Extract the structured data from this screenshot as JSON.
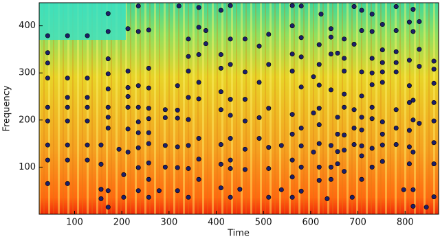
{
  "chart_data": {
    "type": "scatter",
    "xlabel": "Time",
    "ylabel": "Frequency",
    "xlim": [
      25,
      871
    ],
    "ylim": [
      0,
      449
    ],
    "xticks": [
      100,
      200,
      300,
      400,
      500,
      600,
      700,
      800
    ],
    "yticks": [
      100,
      200,
      300,
      400
    ],
    "color": "#1c1f6b",
    "x": [
      43,
      43,
      43,
      43,
      43,
      43,
      43,
      43,
      43,
      85,
      85,
      85,
      85,
      85,
      85,
      85,
      85,
      127,
      127,
      127,
      127,
      127,
      127,
      127,
      156,
      156,
      156,
      156,
      171,
      171,
      171,
      171,
      171,
      171,
      171,
      171,
      171,
      171,
      194,
      204,
      204,
      213,
      213,
      213,
      213,
      213,
      213,
      213,
      235,
      235,
      235,
      235,
      235,
      235,
      235,
      235,
      235,
      257,
      257,
      257,
      257,
      257,
      257,
      257,
      257,
      257,
      257,
      279,
      292,
      292,
      292,
      292,
      318,
      318,
      318,
      318,
      318,
      318,
      321,
      341,
      341,
      341,
      341,
      341,
      341,
      341,
      341,
      363,
      363,
      363,
      363,
      363,
      363,
      363,
      363,
      378,
      378,
      410,
      410,
      410,
      410,
      410,
      410,
      410,
      410,
      430,
      430,
      430,
      430,
      430,
      430,
      430,
      430,
      430,
      450,
      461,
      461,
      461,
      461,
      461,
      461,
      491,
      491,
      491,
      491,
      511,
      511,
      511,
      511,
      511,
      511,
      538,
      538,
      561,
      561,
      561,
      561,
      561,
      561,
      561,
      561,
      561,
      580,
      580,
      580,
      580,
      580,
      580,
      580,
      580,
      606,
      606,
      606,
      618,
      618,
      618,
      618,
      618,
      618,
      618,
      618,
      622,
      635,
      643,
      643,
      643,
      643,
      643,
      643,
      643,
      657,
      657,
      657,
      657,
      657,
      671,
      671,
      671,
      671,
      671,
      671,
      671,
      671,
      688,
      692,
      692,
      692,
      692,
      692,
      708,
      708,
      708,
      708,
      708,
      708,
      708,
      708,
      708,
      730,
      730,
      730,
      730,
      730,
      730,
      730,
      730,
      730,
      752,
      752,
      752,
      752,
      752,
      752,
      752,
      752,
      752,
      781,
      781,
      781,
      781,
      781,
      781,
      781,
      781,
      797,
      809,
      809,
      809,
      809,
      809,
      809,
      809,
      817,
      817,
      817,
      817,
      817,
      817,
      817,
      830,
      830,
      830,
      830,
      845,
      861,
      861,
      861,
      861,
      861,
      861,
      861,
      861
    ],
    "y": [
      379,
      343,
      321,
      289,
      227,
      198,
      147,
      115,
      65,
      379,
      289,
      248,
      227,
      198,
      147,
      115,
      65,
      379,
      289,
      248,
      227,
      198,
      147,
      115,
      147,
      106,
      53,
      33,
      426,
      388,
      330,
      298,
      266,
      227,
      206,
      183,
      50,
      15,
      138,
      84,
      36,
      394,
      304,
      269,
      250,
      227,
      181,
      132,
      442,
      388,
      273,
      227,
      196,
      173,
      141,
      99,
      50,
      391,
      310,
      268,
      225,
      203,
      173,
      150,
      109,
      74,
      36,
      50,
      222,
      205,
      146,
      100,
      273,
      221,
      204,
      143,
      99,
      50,
      442,
      372,
      335,
      304,
      248,
      201,
      146,
      97,
      36,
      439,
      397,
      339,
      280,
      245,
      161,
      117,
      74,
      390,
      362,
      433,
      339,
      310,
      260,
      222,
      148,
      106,
      56,
      443,
      372,
      318,
      244,
      210,
      161,
      115,
      97,
      36,
      53,
      372,
      302,
      244,
      198,
      138,
      95,
      357,
      280,
      205,
      161,
      382,
      318,
      225,
      142,
      97,
      36,
      146,
      52,
      443,
      400,
      340,
      304,
      212,
      170,
      115,
      79,
      36,
      442,
      375,
      334,
      270,
      183,
      145,
      100,
      49,
      292,
      215,
      132,
      360,
      318,
      274,
      225,
      190,
      150,
      100,
      72,
      425,
      33,
      394,
      376,
      340,
      264,
      146,
      100,
      74,
      342,
      206,
      170,
      133,
      107,
      372,
      331,
      304,
      255,
      227,
      168,
      136,
      91,
      36,
      441,
      361,
      222,
      183,
      148,
      433,
      390,
      302,
      251,
      206,
      179,
      145,
      124,
      74,
      425,
      388,
      331,
      300,
      275,
      227,
      203,
      140,
      100,
      403,
      349,
      322,
      302,
      280,
      196,
      170,
      147,
      112,
      441,
      390,
      345,
      322,
      302,
      222,
      183,
      148,
      52,
      408,
      327,
      273,
      237,
      178,
      143,
      107,
      435,
      388,
      242,
      200,
      132,
      52,
      17,
      409,
      350,
      314,
      193,
      15,
      325,
      308,
      278,
      237,
      198,
      152,
      107,
      37
    ]
  }
}
